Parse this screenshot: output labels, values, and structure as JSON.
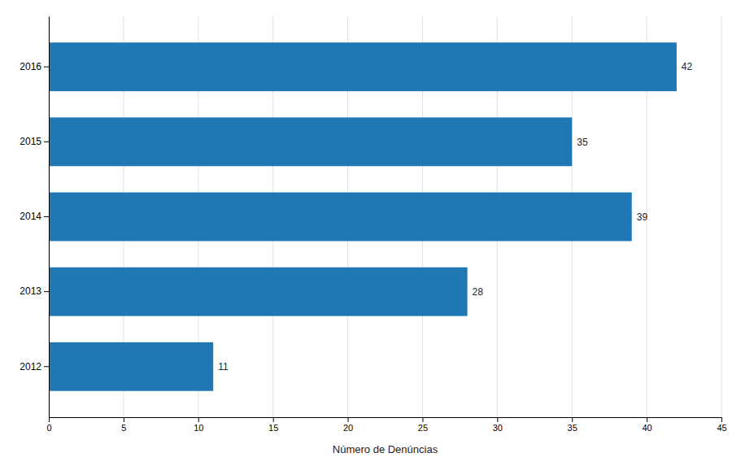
{
  "chart_data": {
    "type": "bar",
    "orientation": "horizontal",
    "categories": [
      "2016",
      "2015",
      "2014",
      "2013",
      "2012"
    ],
    "values": [
      42,
      35,
      39,
      28,
      11
    ],
    "xlabel": "Número de Denúncias",
    "xlim": [
      0,
      45
    ],
    "xticks": [
      0,
      5,
      10,
      15,
      20,
      25,
      30,
      35,
      40,
      45
    ],
    "grid": true,
    "data_labels": true
  }
}
